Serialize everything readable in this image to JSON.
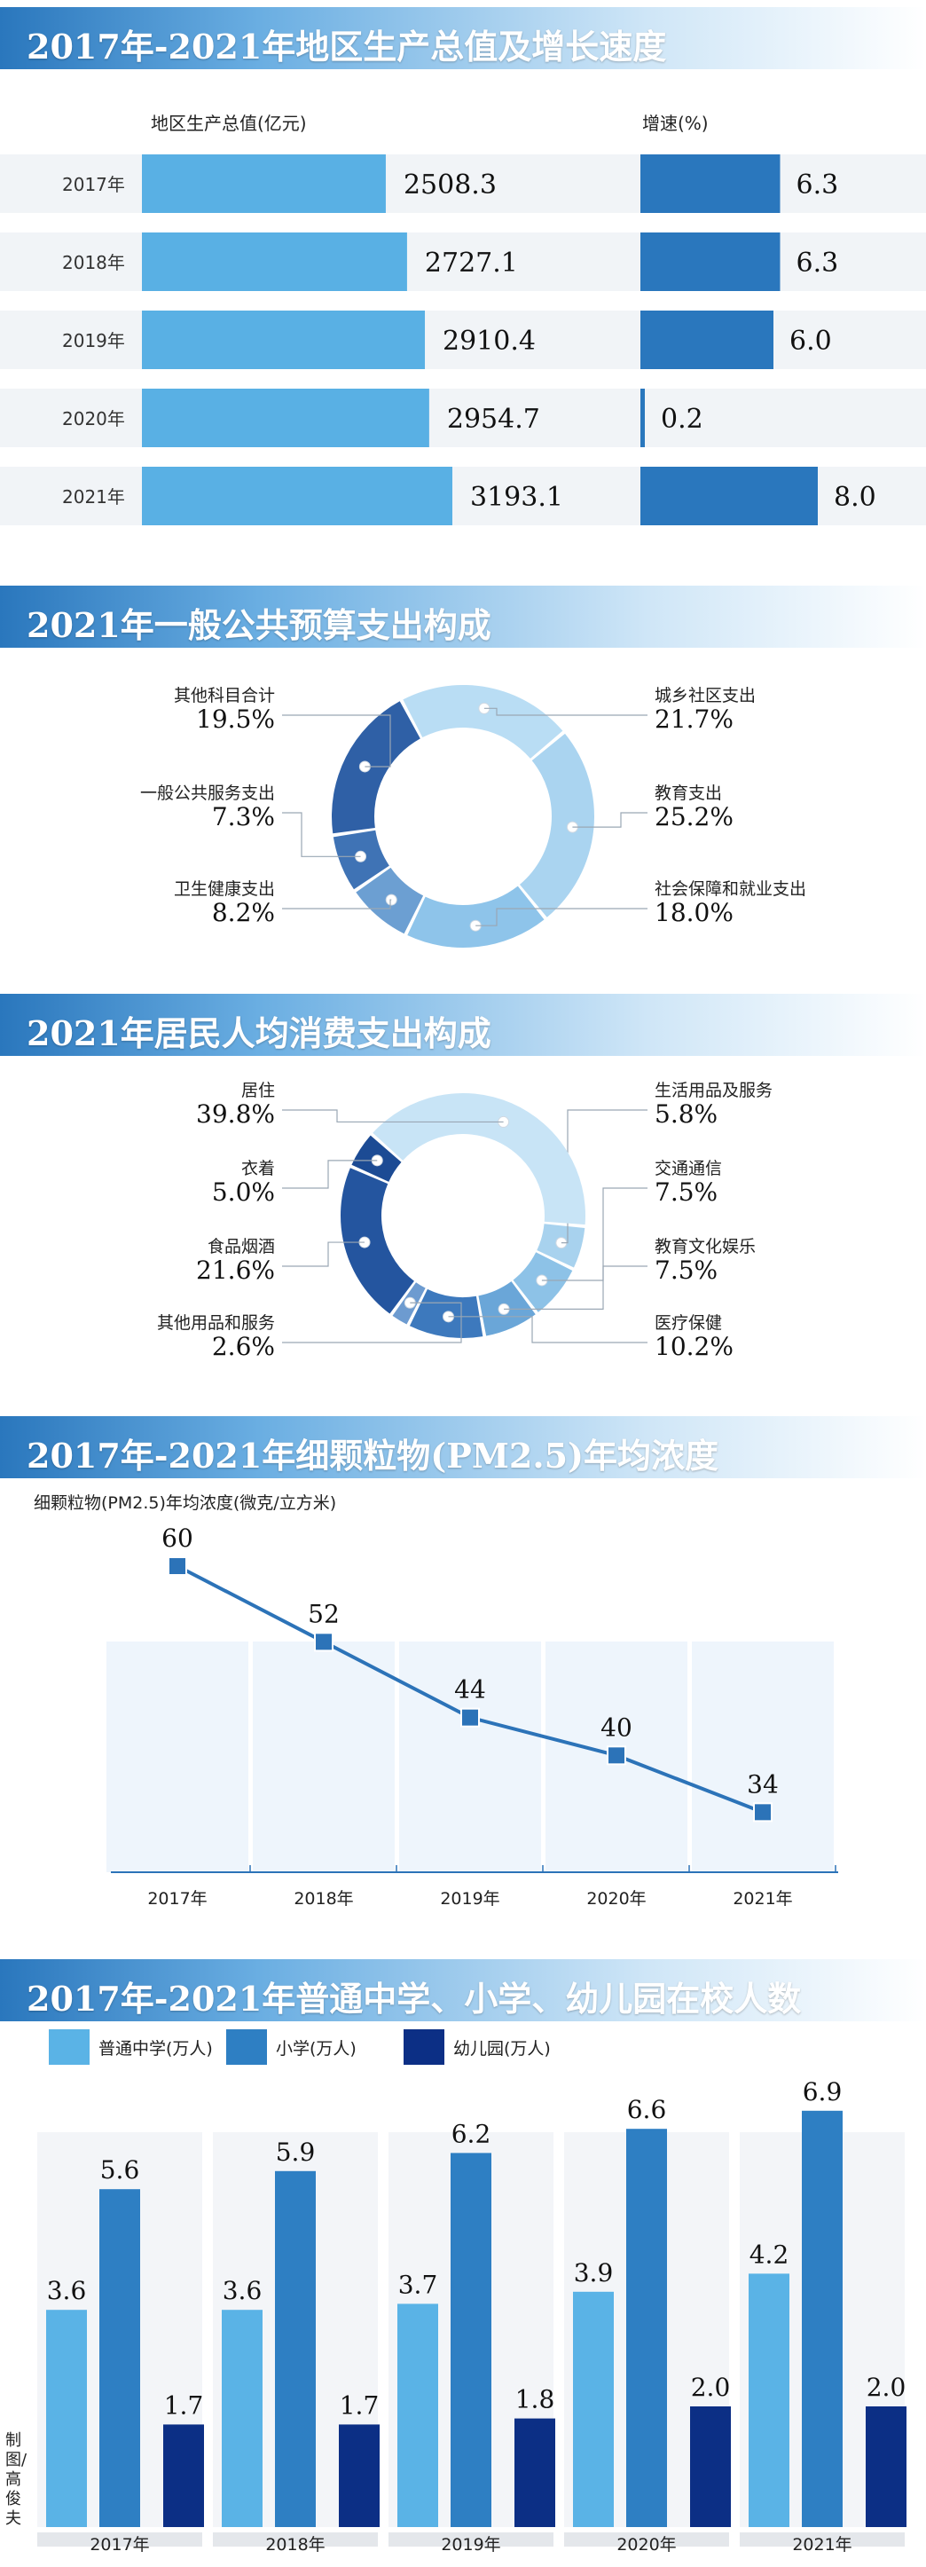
{
  "sections": {
    "gdp_title": "2017年-2021年地区生产总值及增长速度",
    "budget_title": "2021年一般公共预算支出构成",
    "consumption_title": "2021年居民人均消费支出构成",
    "pm_title": "2017年-2021年细颗粒物(PM2.5)年均浓度",
    "students_title": "2017年-2021年普通中学、小学、幼儿园在校人数"
  },
  "credit": "制图/高俊夫",
  "chart_data": [
    {
      "id": "gdp",
      "type": "bar",
      "title": "2017年-2021年地区生产总值及增长速度",
      "categories": [
        "2017年",
        "2018年",
        "2019年",
        "2020年",
        "2021年"
      ],
      "series": [
        {
          "name": "地区生产总值(亿元)",
          "values": [
            2508.3,
            2727.1,
            2910.4,
            2954.7,
            3193.1
          ],
          "color": "#59b0e4"
        },
        {
          "name": "增速(%)",
          "values": [
            6.3,
            6.3,
            6.0,
            0.2,
            8.0
          ],
          "color": "#2a77bd"
        }
      ],
      "value_labels": {
        "gdp": [
          "2508.3",
          "2727.1",
          "2910.4",
          "2954.7",
          "3193.1"
        ],
        "growth": [
          "6.3",
          "6.3",
          "6.0",
          "0.2",
          "8.0"
        ]
      },
      "row_band_color": "#f1f4f7"
    },
    {
      "id": "budget",
      "type": "pie",
      "title": "2021年一般公共预算支出构成",
      "slices": [
        {
          "label": "城乡社区支出",
          "value": 21.7,
          "display": "21.7%",
          "color": "#b9ddf4",
          "side": "right"
        },
        {
          "label": "教育支出",
          "value": 25.2,
          "display": "25.2%",
          "color": "#aad4f0",
          "side": "right"
        },
        {
          "label": "社会保障和就业支出",
          "value": 18.0,
          "display": "18.0%",
          "color": "#8ec4ea",
          "side": "right"
        },
        {
          "label": "卫生健康支出",
          "value": 8.2,
          "display": "8.2%",
          "color": "#6c9fd2",
          "side": "left"
        },
        {
          "label": "一般公共服务支出",
          "value": 7.3,
          "display": "7.3%",
          "color": "#3f73b5",
          "side": "left"
        },
        {
          "label": "其他科目合计",
          "value": 19.5,
          "display": "19.5%",
          "color": "#2f60a6",
          "side": "left"
        }
      ]
    },
    {
      "id": "consumption",
      "type": "pie",
      "title": "2021年居民人均消费支出构成",
      "slices": [
        {
          "label": "生活用品及服务",
          "value": 5.8,
          "display": "5.8%",
          "color": "#a8d2ee",
          "side": "right"
        },
        {
          "label": "交通通信",
          "value": 7.5,
          "display": "7.5%",
          "color": "#8dc2e7",
          "side": "right"
        },
        {
          "label": "教育文化娱乐",
          "value": 7.5,
          "display": "7.5%",
          "color": "#6aa6d8",
          "side": "right"
        },
        {
          "label": "医疗保健",
          "value": 10.2,
          "display": "10.2%",
          "color": "#3d79bd",
          "side": "right"
        },
        {
          "label": "其他用品和服务",
          "value": 2.6,
          "display": "2.6%",
          "color": "#6d9bd0",
          "side": "left"
        },
        {
          "label": "食品烟酒",
          "value": 21.6,
          "display": "21.6%",
          "color": "#24559f",
          "side": "left"
        },
        {
          "label": "衣着",
          "value": 5.0,
          "display": "5.0%",
          "color": "#1c4b94",
          "side": "left"
        },
        {
          "label": "居住",
          "value": 39.8,
          "display": "39.8%",
          "color": "#c8e4f6",
          "side": "left"
        }
      ]
    },
    {
      "id": "pm25",
      "type": "line",
      "title": "2017年-2021年细颗粒物(PM2.5)年均浓度",
      "ylabel": "细颗粒物(PM2.5)年均浓度(微克/立方米)",
      "x": [
        "2017年",
        "2018年",
        "2019年",
        "2020年",
        "2021年"
      ],
      "values": [
        60,
        52,
        44,
        40,
        34
      ],
      "line_color": "#2c73b8"
    },
    {
      "id": "students",
      "type": "bar",
      "title": "2017年-2021年普通中学、小学、幼儿园在校人数",
      "categories": [
        "2017年",
        "2018年",
        "2019年",
        "2020年",
        "2021年"
      ],
      "series": [
        {
          "name": "普通中学(万人)",
          "values": [
            3.6,
            3.6,
            3.7,
            3.9,
            4.2
          ],
          "color": "#5ab3e6"
        },
        {
          "name": "小学(万人)",
          "values": [
            5.6,
            5.9,
            6.2,
            6.6,
            6.9
          ],
          "color": "#2e7fc3"
        },
        {
          "name": "幼儿园(万人)",
          "values": [
            1.7,
            1.7,
            1.8,
            2.0,
            2.0
          ],
          "color": "#0c2f85"
        }
      ],
      "value_labels": [
        [
          "3.6",
          "3.6",
          "3.7",
          "3.9",
          "4.2"
        ],
        [
          "5.6",
          "5.9",
          "6.2",
          "6.6",
          "6.9"
        ],
        [
          "1.7",
          "1.7",
          "1.8",
          "2.0",
          "2.0"
        ]
      ]
    }
  ]
}
